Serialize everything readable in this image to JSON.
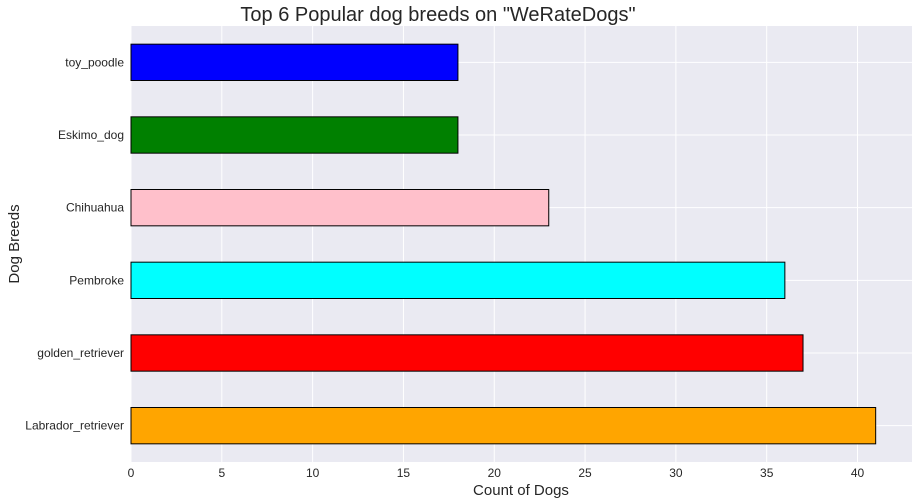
{
  "chart_data": {
    "type": "bar",
    "orientation": "horizontal",
    "title": "Top 6 Popular dog breeds on \"WeRateDogs\"",
    "xlabel": "Count of Dogs",
    "ylabel": "Dog Breeds",
    "categories": [
      "Labrador_retriever",
      "golden_retriever",
      "Pembroke",
      "Chihuahua",
      "Eskimo_dog",
      "toy_poodle"
    ],
    "values": [
      41,
      37,
      36,
      23,
      18,
      18
    ],
    "colors": [
      "#FFA500",
      "#FF0000",
      "#00FFFF",
      "#FFC0CB",
      "#008000",
      "#0000FF"
    ],
    "xlim": [
      0,
      43
    ],
    "xticks": [
      0,
      5,
      10,
      15,
      20,
      25,
      30,
      35,
      40
    ],
    "grid": true,
    "legend": "none",
    "background_color": "#EAEAF2",
    "bar_edge_color": "#000000"
  }
}
